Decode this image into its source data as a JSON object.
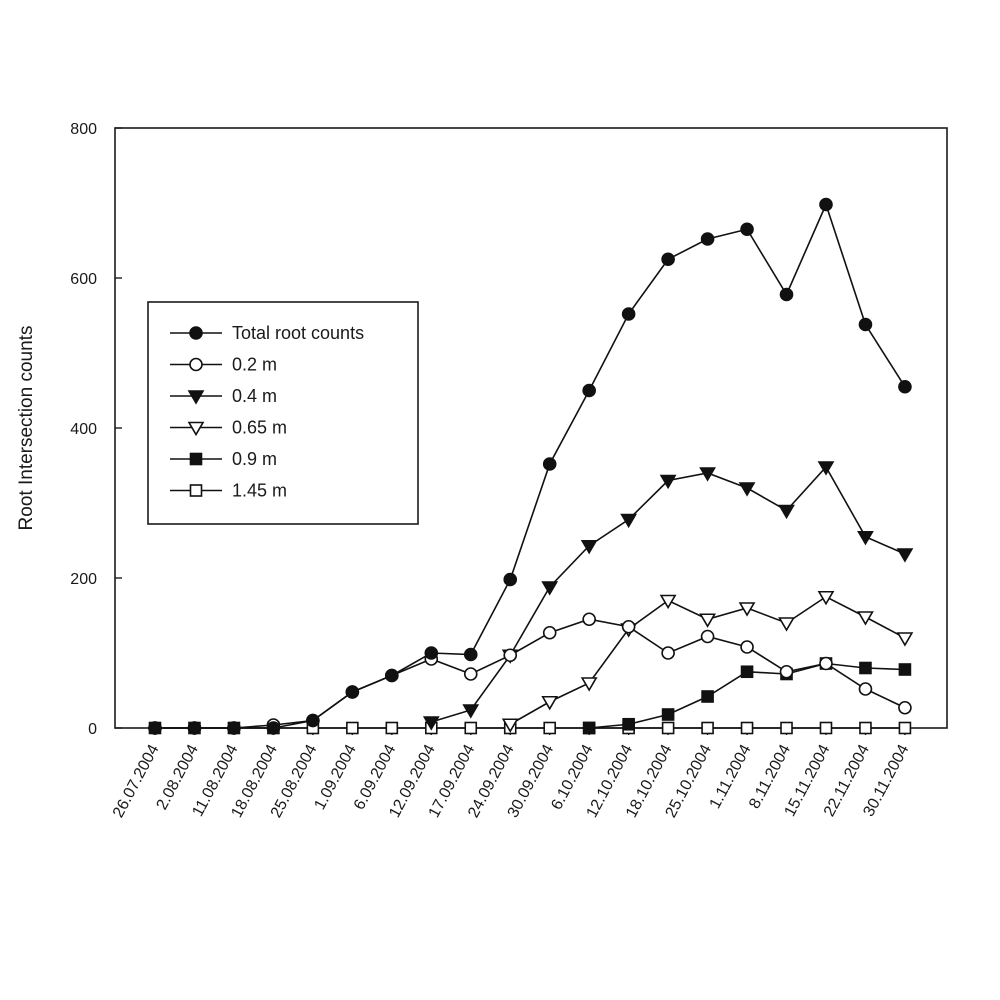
{
  "chart_data": {
    "type": "line",
    "ylabel": "Root Intersection counts",
    "xlabel": "",
    "ylim": [
      0,
      800
    ],
    "yticks": [
      0,
      200,
      400,
      600,
      800
    ],
    "ytick_labels": [
      "0",
      "200",
      "400",
      "600",
      "800"
    ],
    "grid": false,
    "legend_position": "upper-left",
    "categories": [
      "26.07.2004",
      "2.08.2004",
      "11.08.2004",
      "18.08.2004",
      "25.08.2004",
      "1.09.2004",
      "6.09.2004",
      "12.09.2004",
      "17.09.2004",
      "24.09.2004",
      "30.09.2004",
      "6.10.2004",
      "12.10.2004",
      "18.10.2004",
      "25.10.2004",
      "1.11.2004",
      "8.11.2004",
      "15.11.2004",
      "22.11.2004",
      "30.11.2004"
    ],
    "series": [
      {
        "name": "Total root counts",
        "marker": "circle-filled",
        "x": [
          "26.07.2004",
          "2.08.2004",
          "11.08.2004",
          "18.08.2004",
          "25.08.2004",
          "1.09.2004",
          "6.09.2004",
          "12.09.2004",
          "17.09.2004",
          "24.09.2004",
          "30.09.2004",
          "6.10.2004",
          "12.10.2004",
          "18.10.2004",
          "25.10.2004",
          "1.11.2004",
          "8.11.2004",
          "15.11.2004",
          "22.11.2004",
          "30.11.2004"
        ],
        "values": [
          0,
          0,
          0,
          0,
          10,
          48,
          70,
          100,
          98,
          198,
          352,
          450,
          552,
          625,
          652,
          665,
          578,
          698,
          538,
          455
        ]
      },
      {
        "name": "0.2 m",
        "marker": "circle-open",
        "x": [
          "26.07.2004",
          "2.08.2004",
          "11.08.2004",
          "18.08.2004",
          "25.08.2004",
          "1.09.2004",
          "6.09.2004",
          "12.09.2004",
          "17.09.2004",
          "24.09.2004",
          "30.09.2004",
          "6.10.2004",
          "12.10.2004",
          "18.10.2004",
          "25.10.2004",
          "1.11.2004",
          "8.11.2004",
          "15.11.2004",
          "22.11.2004",
          "30.11.2004"
        ],
        "values": [
          0,
          0,
          0,
          4,
          10,
          48,
          70,
          92,
          72,
          97,
          127,
          145,
          135,
          100,
          122,
          108,
          75,
          86,
          52,
          27
        ]
      },
      {
        "name": "0.4 m",
        "marker": "triangle-down-filled",
        "x": [
          "12.09.2004",
          "17.09.2004",
          "24.09.2004",
          "30.09.2004",
          "6.10.2004",
          "12.10.2004",
          "18.10.2004",
          "25.10.2004",
          "1.11.2004",
          "8.11.2004",
          "15.11.2004",
          "22.11.2004",
          "30.11.2004"
        ],
        "values": [
          8,
          24,
          97,
          188,
          243,
          278,
          330,
          340,
          320,
          290,
          348,
          255,
          232
        ]
      },
      {
        "name": "0.65 m",
        "marker": "triangle-down-open",
        "x": [
          "24.09.2004",
          "30.09.2004",
          "6.10.2004",
          "12.10.2004",
          "18.10.2004",
          "25.10.2004",
          "1.11.2004",
          "8.11.2004",
          "15.11.2004",
          "22.11.2004",
          "30.11.2004"
        ],
        "values": [
          5,
          35,
          60,
          132,
          170,
          145,
          160,
          140,
          175,
          148,
          120
        ]
      },
      {
        "name": "0.9 m",
        "marker": "square-filled",
        "x": [
          "6.10.2004",
          "12.10.2004",
          "18.10.2004",
          "25.10.2004",
          "1.11.2004",
          "8.11.2004",
          "15.11.2004",
          "22.11.2004",
          "30.11.2004"
        ],
        "values": [
          0,
          5,
          18,
          42,
          75,
          72,
          86,
          80,
          78
        ]
      },
      {
        "name": "1.45 m",
        "marker": "square-open",
        "x": [
          "26.07.2004",
          "2.08.2004",
          "11.08.2004",
          "18.08.2004",
          "25.08.2004",
          "1.09.2004",
          "6.09.2004",
          "12.09.2004",
          "17.09.2004",
          "24.09.2004",
          "30.09.2004",
          "6.10.2004",
          "12.10.2004",
          "18.10.2004",
          "25.10.2004",
          "1.11.2004",
          "8.11.2004",
          "15.11.2004",
          "22.11.2004",
          "30.11.2004"
        ],
        "values": [
          0,
          0,
          0,
          0,
          0,
          0,
          0,
          0,
          0,
          0,
          0,
          0,
          0,
          0,
          0,
          0,
          0,
          0,
          0,
          0
        ]
      }
    ]
  }
}
